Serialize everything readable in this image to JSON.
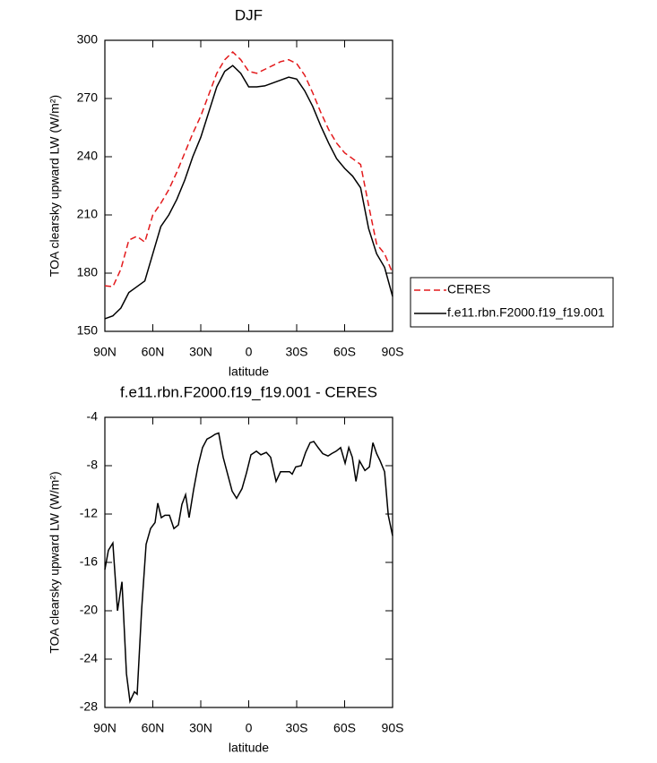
{
  "chart_data": [
    {
      "type": "line",
      "title": "DJF",
      "xlabel": "latitude",
      "ylabel": "TOA clearsky upward LW (W/m²)",
      "x": [
        90,
        85,
        80,
        75,
        70,
        65,
        60,
        55,
        50,
        45,
        40,
        35,
        30,
        25,
        20,
        15,
        10,
        5,
        0,
        -5,
        -10,
        -15,
        -20,
        -25,
        -30,
        -35,
        -40,
        -45,
        -50,
        -55,
        -60,
        -65,
        -70,
        -75,
        -80,
        -85,
        -90
      ],
      "series": [
        {
          "name": "CERES",
          "color": "#e31a1c",
          "dash": true,
          "values": [
            173.5,
            173,
            182,
            197,
            199,
            196,
            210,
            216,
            223,
            232,
            242,
            252,
            261,
            272,
            283,
            290,
            294,
            290,
            284,
            283,
            285,
            287,
            289,
            290,
            288,
            282,
            273,
            263,
            254,
            247,
            242,
            239,
            236,
            215,
            195,
            190,
            180
          ]
        },
        {
          "name": "f.e11.rbn.F2000.f19_f19.001",
          "color": "#000000",
          "dash": false,
          "values": [
            156.5,
            158,
            162,
            170,
            173,
            176,
            190,
            204,
            210,
            218,
            228,
            240,
            250,
            263,
            276,
            284,
            287,
            283,
            276,
            276,
            276.5,
            278,
            279.5,
            281,
            280,
            274,
            266,
            256,
            247,
            239,
            234,
            230,
            224,
            203,
            190,
            183,
            168
          ]
        }
      ],
      "xlim": [
        90,
        -90
      ],
      "xticks": [
        {
          "value": 90,
          "label": "90N"
        },
        {
          "value": 60,
          "label": "60N"
        },
        {
          "value": 30,
          "label": "30N"
        },
        0,
        {
          "value": -30,
          "label": "30S"
        },
        {
          "value": -60,
          "label": "60S"
        },
        {
          "value": -90,
          "label": "90S"
        }
      ],
      "ylim": [
        150,
        300
      ],
      "yticks": [
        150,
        180,
        210,
        240,
        270,
        300
      ],
      "legend": "right"
    },
    {
      "type": "line",
      "title": "f.e11.rbn.F2000.f19_f19.001 - CERES",
      "xlabel": "latitude",
      "ylabel": "TOA clearsky upward LW (W/m²)",
      "x": [
        90,
        87.8,
        85,
        82.1,
        79.3,
        76.5,
        74.3,
        71.5,
        69.8,
        67,
        64.2,
        61.4,
        58.6,
        56.9,
        54.7,
        52.4,
        49.6,
        46.8,
        44,
        41.8,
        39.5,
        37.3,
        34.5,
        31.7,
        28.9,
        26.1,
        23.3,
        21,
        18.8,
        16,
        13.2,
        10.4,
        7.6,
        4.2,
        1.4,
        -1.4,
        -4.8,
        -7.6,
        -11,
        -13.7,
        -17.1,
        -19.9,
        -23.3,
        -25.5,
        -27.2,
        -29.4,
        -32.8,
        -35.6,
        -38.4,
        -40.7,
        -43.4,
        -46.3,
        -49.6,
        -51.9,
        -54.7,
        -57.5,
        -60.3,
        -62.6,
        -64.8,
        -67.1,
        -69.3,
        -72.7,
        -75.5,
        -77.7,
        -80,
        -82.2,
        -85,
        -87.3,
        -90
      ],
      "values": [
        -16.6,
        -15,
        -14.4,
        -20,
        -17.6,
        -25.2,
        -27.5,
        -26.7,
        -26.9,
        -19.9,
        -14.5,
        -13.2,
        -12.7,
        -11.1,
        -12.3,
        -12.1,
        -12.1,
        -13.2,
        -12.9,
        -11.2,
        -10.4,
        -12.3,
        -10,
        -8,
        -6.5,
        -5.8,
        -5.6,
        -5.4,
        -5.3,
        -7.3,
        -8.7,
        -10.1,
        -10.7,
        -9.9,
        -8.6,
        -7.1,
        -6.8,
        -7.1,
        -6.9,
        -7.3,
        -9.3,
        -8.5,
        -8.5,
        -8.5,
        -8.7,
        -8.1,
        -8,
        -6.9,
        -6.1,
        -6,
        -6.5,
        -7,
        -7.2,
        -7,
        -6.8,
        -6.5,
        -7.8,
        -6.5,
        -7.3,
        -9.3,
        -7.6,
        -8.4,
        -8.1,
        -6.1,
        -7,
        -7.6,
        -8.5,
        -12.1,
        -13.8
      ],
      "color": "#000000",
      "xlim": [
        90,
        -90
      ],
      "xticks": [
        {
          "value": 90,
          "label": "90N"
        },
        {
          "value": 60,
          "label": "60N"
        },
        {
          "value": 30,
          "label": "30N"
        },
        0,
        {
          "value": -30,
          "label": "30S"
        },
        {
          "value": -60,
          "label": "60S"
        },
        {
          "value": -90,
          "label": "90S"
        }
      ],
      "ylim": [
        -28,
        -4
      ],
      "yticks": [
        -28,
        -24,
        -20,
        -16,
        -12,
        -8,
        -4
      ]
    }
  ]
}
